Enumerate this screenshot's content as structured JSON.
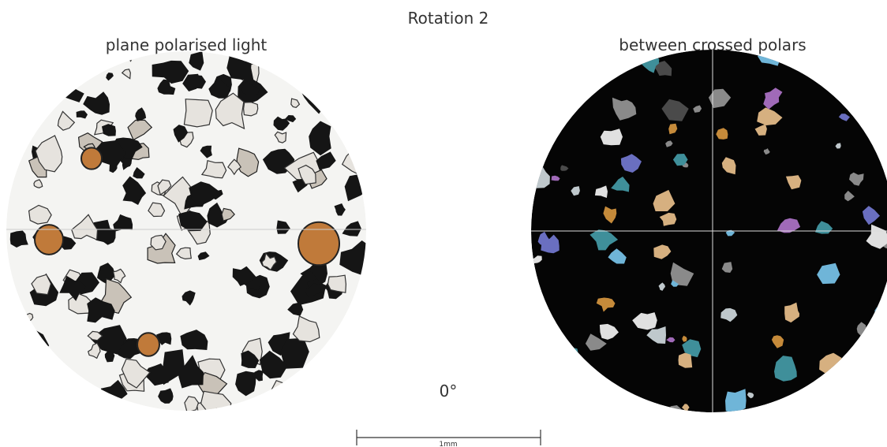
{
  "header": {
    "title": "Rotation 2"
  },
  "views": [
    {
      "label": "plane polarised light"
    },
    {
      "label": "between crossed polars"
    }
  ],
  "rotation_label": "0°",
  "scale_bar": {
    "label": "1mm"
  }
}
